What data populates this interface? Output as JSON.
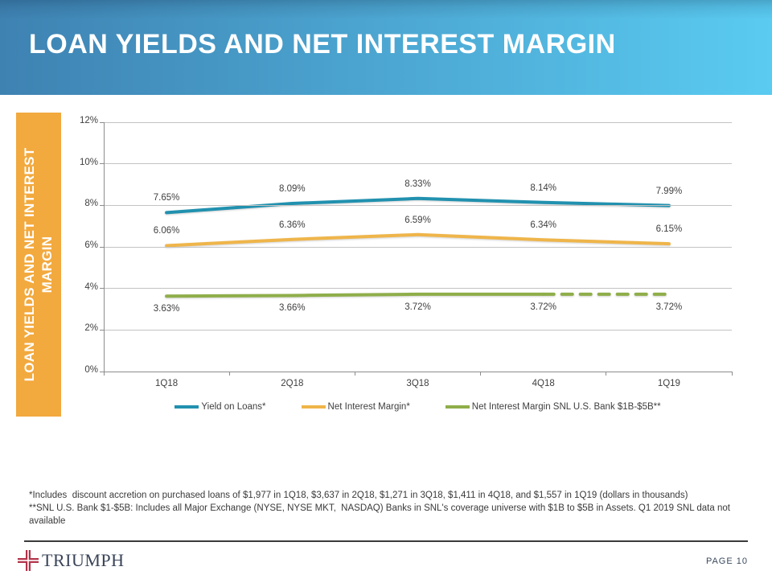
{
  "header": {
    "title": "LOAN YIELDS AND NET INTEREST MARGIN"
  },
  "sidebar": {
    "title": "LOAN YIELDS AND NET INTEREST MARGIN"
  },
  "chart_data": {
    "type": "line",
    "categories": [
      "1Q18",
      "2Q18",
      "3Q18",
      "4Q18",
      "1Q19"
    ],
    "series": [
      {
        "name": "Yield on Loans*",
        "color": "#2191AF",
        "values": [
          7.65,
          8.09,
          8.33,
          8.14,
          7.99
        ],
        "point_labels": [
          "7.65%",
          "8.09%",
          "8.33%",
          "8.14%",
          "7.99%"
        ],
        "label_side": "above",
        "dash_from_index": null
      },
      {
        "name": "Net Interest Margin*",
        "color": "#EFB54A",
        "values": [
          6.06,
          6.36,
          6.59,
          6.34,
          6.15
        ],
        "point_labels": [
          "6.06%",
          "6.36%",
          "6.59%",
          "6.34%",
          "6.15%"
        ],
        "label_side": "above",
        "dash_from_index": null
      },
      {
        "name": "Net Interest Margin SNL U.S. Bank $1B-$5B**",
        "color": "#8FAE4A",
        "values": [
          3.63,
          3.66,
          3.72,
          3.72,
          3.72
        ],
        "point_labels": [
          "3.63%",
          "3.66%",
          "3.72%",
          "3.72%",
          "3.72%"
        ],
        "label_side": "below",
        "dash_from_index": 3
      }
    ],
    "ylim": [
      0,
      12
    ],
    "ytick_step": 2,
    "ytick_suffix": "%",
    "grid": true,
    "legend_position": "bottom"
  },
  "footnotes": {
    "line1": "*Includes  discount accretion on purchased loans of $1,977 in 1Q18, $3,637 in 2Q18, $1,271 in 3Q18, $1,411 in 4Q18, and $1,557 in 1Q19 (dollars in thousands)",
    "line2": "**SNL U.S. Bank $1-$5B: Includes all Major Exchange (NYSE, NYSE MKT,  NASDAQ) Banks in SNL's coverage universe with $1B to $5B in Assets. Q1 2019 SNL data not available"
  },
  "footer": {
    "brand": "TRIUMPH",
    "page_label": "PAGE 10",
    "logo_color": "#B23349"
  },
  "colors": {
    "header_left": "#3E82B2",
    "header_right": "#5ACBF1",
    "sidebar_bg": "#F2A93E",
    "gridline": "#C3C3C3",
    "axis": "#8C8C8C",
    "text": "#3F3F3F"
  }
}
